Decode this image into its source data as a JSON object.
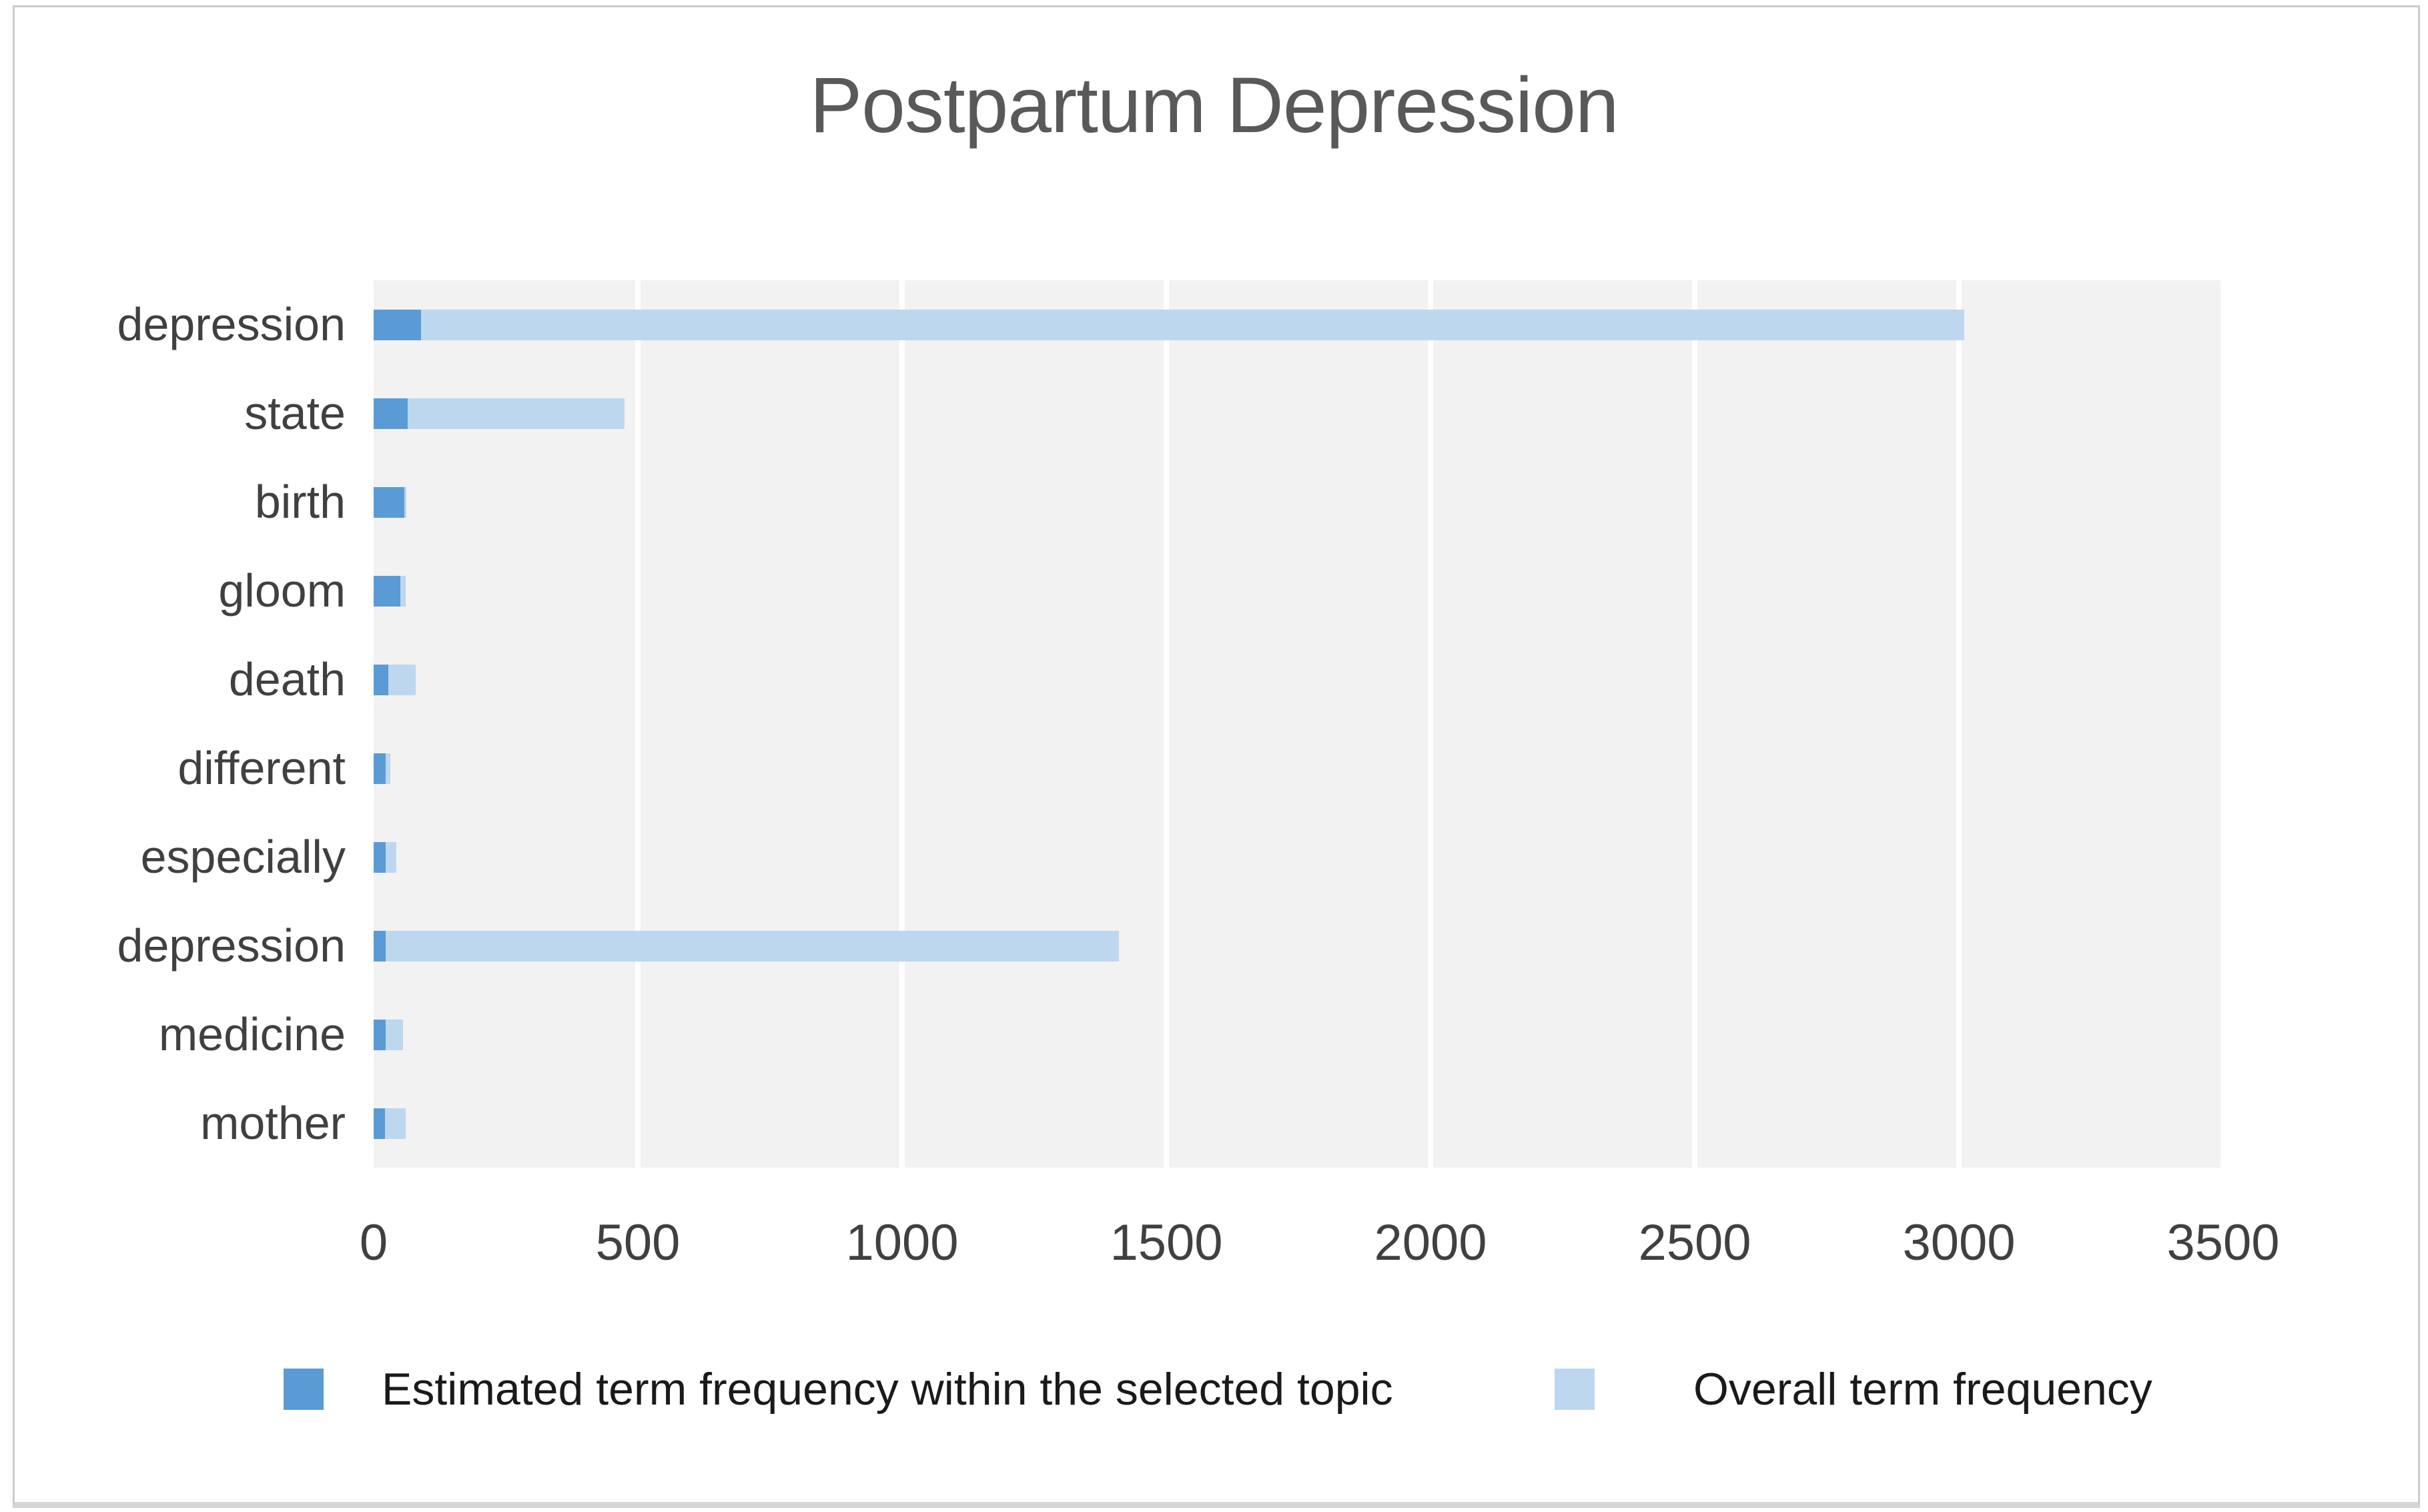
{
  "title": "Postpartum Depression",
  "chart_data": {
    "type": "bar",
    "orientation": "horizontal",
    "title": "Postpartum Depression",
    "xlabel": "",
    "ylabel": "",
    "categories": [
      "depression",
      "state",
      "birth",
      "gloom",
      "death",
      "different",
      "especially",
      "depression",
      "medicine",
      "mother"
    ],
    "series": [
      {
        "name": "Estimated term frequency within the selected topic",
        "color": "#5B9BD5",
        "values": [
          90,
          65,
          58,
          50,
          28,
          23,
          23,
          23,
          23,
          21
        ]
      },
      {
        "name": "Overall term frequency",
        "color": "#BDD7EE",
        "values": [
          3010,
          475,
          62,
          60,
          80,
          32,
          43,
          1410,
          55,
          60
        ]
      }
    ],
    "xlim": [
      0,
      3500
    ],
    "xticks": [
      0,
      500,
      1000,
      1500,
      2000,
      2500,
      3000,
      3500
    ],
    "grid": true,
    "gridline_color": "#FFFFFF",
    "plot_background": "#F2F2F2",
    "legend_position": "bottom"
  },
  "colors": {
    "title_text": "#595959",
    "axis_text": "#404040",
    "legend_text": "#1A1A1A",
    "frame_border": "#CBCBCB"
  }
}
